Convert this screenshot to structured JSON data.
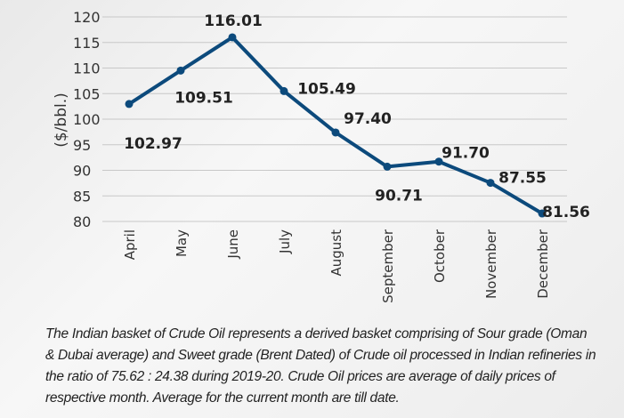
{
  "chart_data": {
    "type": "line",
    "title": "",
    "xlabel": "",
    "ylabel": "($/bbl.)",
    "ylim": [
      80,
      120
    ],
    "yticks": [
      80,
      85,
      90,
      95,
      100,
      105,
      110,
      115,
      120
    ],
    "grid": true,
    "categories": [
      "April",
      "May",
      "June",
      "July",
      "August",
      "September",
      "October",
      "November",
      "December"
    ],
    "series": [
      {
        "values": [
          102.97,
          109.51,
          116.01,
          105.49,
          97.4,
          90.71,
          91.7,
          87.55,
          81.56
        ],
        "color": "#0c4a7c"
      }
    ],
    "data_labels": [
      "102.97",
      "109.51",
      "116.01",
      "105.49",
      "97.40",
      "90.71",
      "91.70",
      "87.55",
      "81.56"
    ]
  },
  "note": "The Indian basket of Crude Oil represents a derived basket comprising of Sour grade (Oman & Dubai average) and Sweet grade (Brent Dated) of Crude oil processed in Indian refineries in the ratio of 75.62 : 24.38 during 2019-20. Crude Oil prices are average of daily prices of respective month. Average for the current month are till date."
}
